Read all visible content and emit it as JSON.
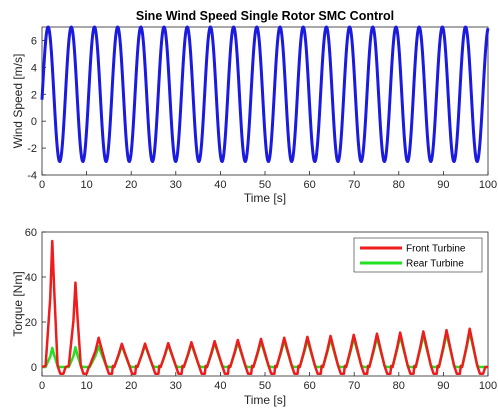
{
  "chart_data": [
    {
      "type": "line",
      "title": "Sine Wind Speed Single Rotor SMC Control",
      "xlabel": "Time [s]",
      "ylabel": "Wind Speed [m/s]",
      "xlim": [
        0,
        100
      ],
      "ylim": [
        -4,
        7
      ],
      "xticks": [
        "0",
        "10",
        "20",
        "30",
        "40",
        "50",
        "60",
        "70",
        "80",
        "90",
        "100"
      ],
      "yticks": [
        "-4",
        "-2",
        "0",
        "2",
        "4",
        "6"
      ],
      "grid": false,
      "legend": "none",
      "series": [
        {
          "color": "#1a1ae0",
          "function": "2 + 5*sin(2*pi*t/5.2 - 0.08)",
          "mean": 2,
          "amplitude": 5,
          "period": 5.2,
          "x_range": [
            0,
            100
          ]
        }
      ]
    },
    {
      "type": "line",
      "title": "",
      "xlabel": "Time [s]",
      "ylabel": "Torque [Nm]",
      "xlim": [
        0,
        100
      ],
      "ylim": [
        -4,
        60
      ],
      "xticks": [
        "0",
        "10",
        "20",
        "30",
        "40",
        "50",
        "60",
        "70",
        "80",
        "90",
        "100"
      ],
      "yticks": [
        "0",
        "20",
        "40",
        "60"
      ],
      "grid": false,
      "legend": "top-right",
      "series": [
        {
          "name": "Front Turbine",
          "color": "#ee1c1c",
          "peak_times": [
            2.3,
            7.5,
            12.7,
            17.9,
            23.1,
            28.3,
            33.5,
            38.7,
            43.9,
            49.1,
            54.3,
            59.5,
            64.7,
            69.9,
            75.1,
            80.3,
            85.5,
            90.7,
            95.9
          ],
          "peak_values": [
            56,
            37.5,
            13,
            10.3,
            10.4,
            10.6,
            11,
            11.5,
            12,
            12.5,
            13,
            13.4,
            13.8,
            14.3,
            14.8,
            15.3,
            15.8,
            16.4,
            17
          ],
          "trough": -3
        },
        {
          "name": "Rear Turbine",
          "color": "#22e022",
          "peak_times": [
            2.3,
            7.5,
            12.7,
            17.9,
            23.1,
            28.3,
            33.5,
            38.7,
            43.9,
            49.1,
            54.3,
            59.5,
            64.7,
            69.9,
            75.1,
            80.3,
            85.5,
            90.7,
            95.9
          ],
          "peak_values": [
            8.5,
            8.8,
            9.2,
            9.5,
            9.8,
            10,
            10.3,
            10.6,
            11,
            11.3,
            11.7,
            12,
            12.4,
            12.8,
            13.2,
            13.7,
            14.2,
            14.8,
            15.5
          ],
          "trough": 0
        }
      ]
    }
  ]
}
